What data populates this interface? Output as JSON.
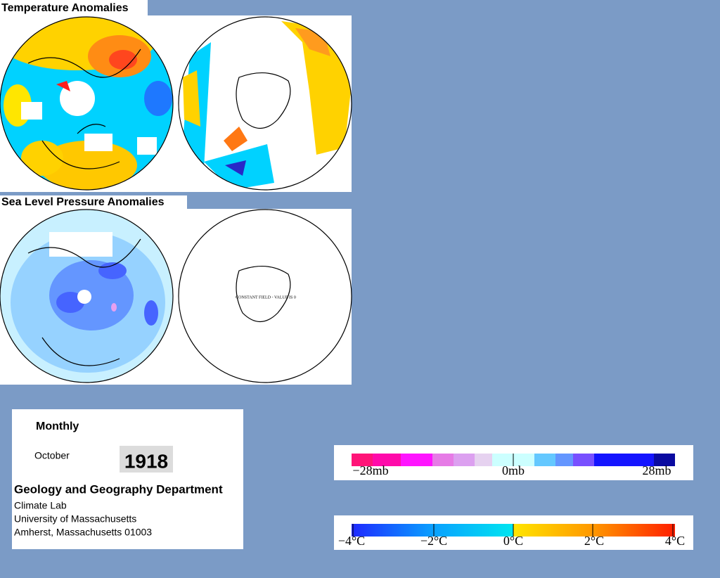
{
  "panels": [
    {
      "title": "Temperature Anomalies"
    },
    {
      "title": "Sea Level Pressure Anomalies",
      "note": "CONSTANT FIELD - VALUE IS 0"
    }
  ],
  "info": {
    "period": "Monthly",
    "month": "October",
    "year": "1918",
    "department": "Geology and Geography Department",
    "lines": [
      "Climate Lab",
      "University of Massachusetts",
      "Amherst, Massachusetts 01003"
    ]
  },
  "legends": {
    "pressure": {
      "labels": [
        "−28mb",
        "0mb",
        "28mb"
      ]
    },
    "temperature": {
      "labels": [
        "−4°C",
        "−2°C",
        "0°C",
        "2°C",
        "4°C"
      ]
    }
  }
}
